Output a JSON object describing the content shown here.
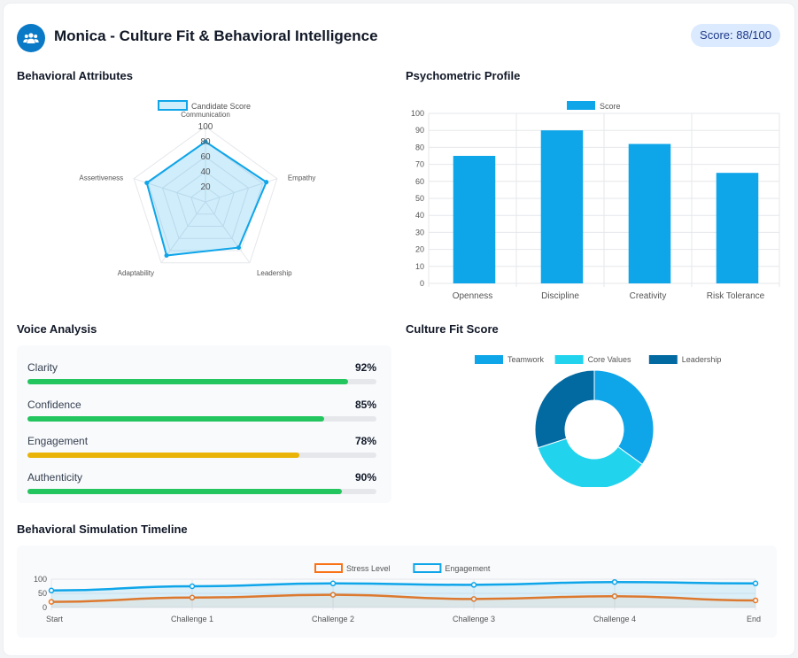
{
  "header": {
    "title": "Monica - Culture Fit & Behavioral Intelligence",
    "score_badge": "Score: 88/100",
    "icon": "users-icon",
    "accent_color": "#0a7ac7"
  },
  "sections": {
    "behavioral_attributes": "Behavioral Attributes",
    "psychometric_profile": "Psychometric Profile",
    "voice_analysis": "Voice Analysis",
    "culture_fit_score": "Culture Fit Score",
    "timeline": "Behavioral Simulation Timeline"
  },
  "voice_analysis": {
    "metrics": [
      {
        "label": "Clarity",
        "value": 92,
        "display": "92%",
        "color": "#22c55e"
      },
      {
        "label": "Confidence",
        "value": 85,
        "display": "85%",
        "color": "#22c55e"
      },
      {
        "label": "Engagement",
        "value": 78,
        "display": "78%",
        "color": "#eab308"
      },
      {
        "label": "Authenticity",
        "value": 90,
        "display": "90%",
        "color": "#22c55e"
      }
    ]
  },
  "chart_data": [
    {
      "id": "radar",
      "type": "radar",
      "axes": [
        "Communication",
        "Empathy",
        "Leadership",
        "Adaptability",
        "Assertiveness"
      ],
      "ticks": [
        "20",
        "40",
        "60",
        "80",
        "100"
      ],
      "range": [
        0,
        100
      ],
      "series": [
        {
          "name": "Candidate Score",
          "values": [
            80,
            85,
            75,
            88,
            82
          ],
          "color": "#0ea5e9"
        }
      ],
      "legend": "top"
    },
    {
      "id": "bar",
      "type": "bar",
      "categories": [
        "Openness",
        "Discipline",
        "Creativity",
        "Risk Tolerance"
      ],
      "series": [
        {
          "name": "Score",
          "values": [
            75,
            90,
            82,
            65
          ],
          "color": "#0ea5e9"
        }
      ],
      "ylim": [
        0,
        100
      ],
      "yticks": [
        "0",
        "10",
        "20",
        "30",
        "40",
        "50",
        "60",
        "70",
        "80",
        "90",
        "100"
      ],
      "grid": true,
      "legend": "top"
    },
    {
      "id": "donut",
      "type": "pie",
      "categories": [
        "Teamwork",
        "Core Values",
        "Leadership"
      ],
      "values": [
        35,
        35,
        30
      ],
      "colors": [
        "#0ea5e9",
        "#22d3ee",
        "#0369a1"
      ],
      "legend": "top"
    },
    {
      "id": "line",
      "type": "line",
      "categories": [
        "Start",
        "Challenge 1",
        "Challenge 2",
        "Challenge 3",
        "Challenge 4",
        "End"
      ],
      "series": [
        {
          "name": "Stress Level",
          "values": [
            20,
            35,
            45,
            30,
            40,
            25
          ],
          "color": "#f97316"
        },
        {
          "name": "Engagement",
          "values": [
            60,
            75,
            85,
            80,
            90,
            85
          ],
          "color": "#0ea5e9"
        }
      ],
      "ylim": [
        0,
        100
      ],
      "yticks": [
        "0",
        "50",
        "100"
      ],
      "legend": "top"
    }
  ]
}
